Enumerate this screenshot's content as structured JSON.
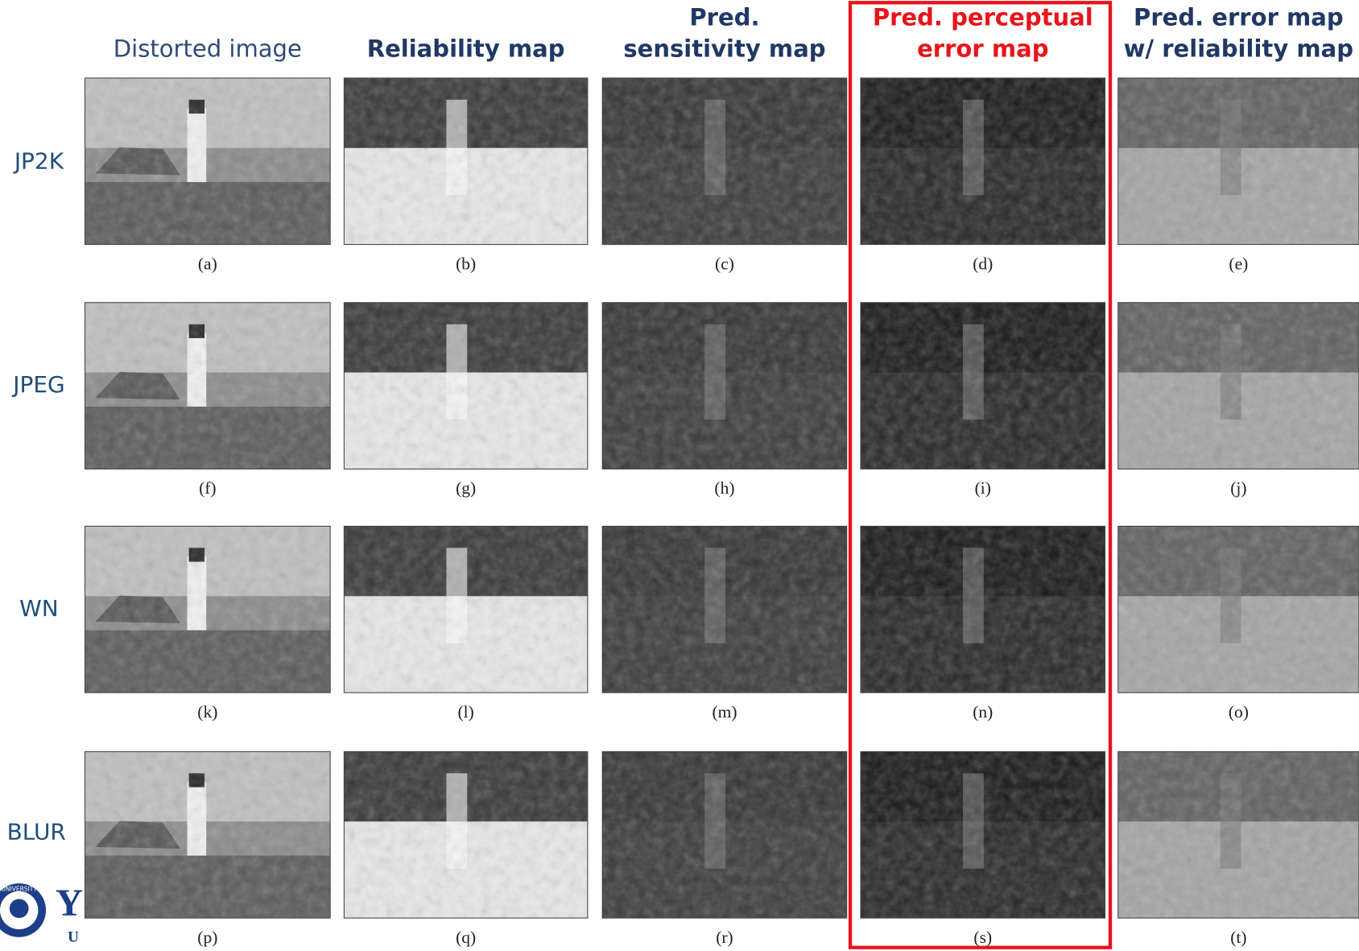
{
  "headers": [
    {
      "lines": [
        "Distorted image"
      ]
    },
    {
      "lines": [
        "Reliability map"
      ]
    },
    {
      "lines": [
        "Pred.",
        "sensitivity map"
      ]
    },
    {
      "lines": [
        "Pred. perceptual",
        "error map"
      ]
    },
    {
      "lines": [
        "Pred. error map",
        "w/ reliability map"
      ]
    }
  ],
  "rows": [
    "JP2K",
    "JPEG",
    "WN",
    "BLUR"
  ],
  "captions": [
    "(a)",
    "(b)",
    "(c)",
    "(d)",
    "(e)",
    "(f)",
    "(g)",
    "(h)",
    "(i)",
    "(j)",
    "(k)",
    "(l)",
    "(m)",
    "(n)",
    "(o)",
    "(p)",
    "(q)",
    "(r)",
    "(s)",
    "(t)"
  ],
  "logo": {
    "seal": "UNIVERSITY",
    "letters": [
      "Y",
      "U"
    ]
  }
}
